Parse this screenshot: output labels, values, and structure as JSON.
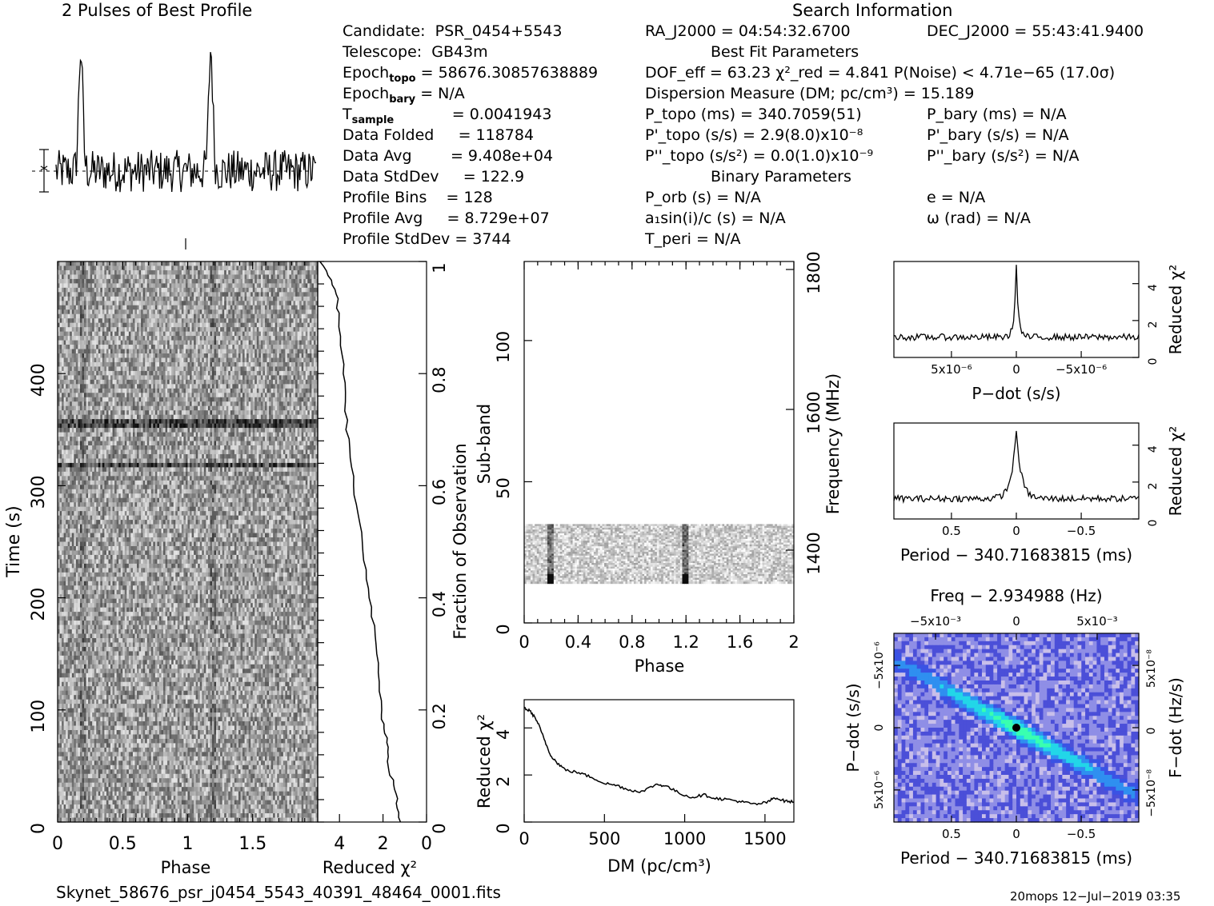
{
  "profile_title": "2 Pulses of Best Profile",
  "search_title": "Search Information",
  "info_left": [
    {
      "label": "Candidate:",
      "value": "PSR_0454+5543"
    },
    {
      "label": "Telescope:",
      "value": "GB43m"
    },
    {
      "label": "Epoch_topo",
      "value": "= 58676.30857638889"
    },
    {
      "label": "Epoch_bary",
      "value": "= N/A"
    },
    {
      "label": "T_sample",
      "value": "=   0.0041943"
    },
    {
      "label": "Data Folded",
      "value": "=   118784"
    },
    {
      "label": "Data Avg",
      "value": "=   9.408e+04"
    },
    {
      "label": "Data StdDev",
      "value": "=   122.9"
    },
    {
      "label": "Profile Bins",
      "value": "=   128"
    },
    {
      "label": "Profile Avg",
      "value": "=   8.729e+07"
    },
    {
      "label": "Profile StdDev",
      "value": "=   3744"
    }
  ],
  "info_mid": {
    "ra": "RA_J2000 = 04:54:32.6700",
    "best_fit_header": "Best Fit Parameters",
    "dof": "DOF_eff = 63.23  χ²_red = 4.841  P(Noise) < 4.71e−65  (17.0σ)",
    "dm": "Dispersion Measure (DM; pc/cm³) = 15.189",
    "p_topo": "P_topo (ms) =  340.7059(51)",
    "pd_topo": "P'_topo (s/s) =  2.9(8.0)x10⁻⁸",
    "pdd_topo": "P''_topo (s/s²) = 0.0(1.0)x10⁻⁹",
    "binary_header": "Binary Parameters",
    "p_orb": "P_orb (s) = N/A",
    "a1": "a₁sin(i)/c (s) = N/A",
    "t_peri": "T_peri = N/A"
  },
  "info_right": {
    "dec": "DEC_J2000 = 55:43:41.9400",
    "p_bary": "P_bary (ms) = N/A",
    "pd_bary": "P'_bary (s/s) = N/A",
    "pdd_bary": "P''_bary (s/s²) = N/A",
    "e": "e = N/A",
    "omega": "ω (rad) = N/A"
  },
  "footer_file": "Skynet_58676_psr_j0454_5543_40391_48464_0001.fits",
  "footer_stamp": "20mops 12−Jul−2019 03:35",
  "colors": {
    "ink": "#000000",
    "bg": "#ffffff",
    "heat_low": "#3a3ad8",
    "heat_mid": "#2fe0d0",
    "heat_peak": "#000000"
  },
  "chart_data": [
    {
      "id": "profile",
      "type": "line",
      "title": "2 Pulses of Best Profile",
      "x_phase_range": [
        0,
        2
      ],
      "pulse_peaks_phase": [
        0.19,
        1.19
      ],
      "note_values": "normalized amplitude, peak = 1.0, baseline ≈ 0.2"
    },
    {
      "id": "time_phase",
      "type": "heatmap",
      "xlabel": "Phase",
      "ylabel": "Time (s)",
      "x_ticks": [
        0,
        0.5,
        1,
        1.5
      ],
      "x_tick_labels": [
        "0",
        "0.5",
        "1",
        "1.5"
      ],
      "xlim": [
        0,
        2
      ],
      "ylim": [
        0,
        500
      ],
      "y_ticks": [
        0,
        100,
        200,
        300,
        400
      ],
      "right_axis": {
        "label": "Fraction of Observation",
        "ticks": [
          "0",
          "0.2",
          "0.4",
          "0.6",
          "0.8",
          "1"
        ]
      }
    },
    {
      "id": "chi_time",
      "type": "line",
      "xlabel": "Reduced χ²",
      "x_ticks": [
        "4",
        "2",
        "0"
      ],
      "xlim": [
        5,
        0
      ],
      "curve": [
        [
          0.0,
          1.25
        ],
        [
          0.05,
          1.4
        ],
        [
          0.1,
          1.75
        ],
        [
          0.15,
          1.85
        ],
        [
          0.2,
          2.1
        ],
        [
          0.3,
          2.25
        ],
        [
          0.4,
          2.6
        ],
        [
          0.5,
          2.95
        ],
        [
          0.6,
          3.35
        ],
        [
          0.7,
          3.65
        ],
        [
          0.8,
          3.8
        ],
        [
          0.9,
          4.05
        ],
        [
          0.95,
          4.15
        ],
        [
          1.0,
          4.9
        ]
      ]
    },
    {
      "id": "subband_phase",
      "type": "heatmap",
      "xlabel": "Phase",
      "ylabel": "Sub-band",
      "x_ticks": [
        "0",
        "0.4",
        "0.8",
        "1.2",
        "1.6",
        "2"
      ],
      "y_ticks": [
        "0",
        "50",
        "100"
      ],
      "ylim": [
        0,
        128
      ],
      "data_band": [
        14,
        35
      ],
      "right_axis": {
        "label": "Frequency (MHz)",
        "ticks": [
          "1400",
          "1600",
          "1800"
        ]
      }
    },
    {
      "id": "dm_curve",
      "type": "line",
      "xlabel": "DM (pc/cm³)",
      "ylabel": "Reduced χ²",
      "x_ticks": [
        "0",
        "500",
        "1000",
        "1500"
      ],
      "y_ticks": [
        "0",
        "2",
        "4"
      ],
      "xlim": [
        0,
        1680
      ],
      "ylim": [
        0,
        5.2
      ],
      "points": [
        [
          0,
          4.85
        ],
        [
          40,
          4.7
        ],
        [
          80,
          4.3
        ],
        [
          120,
          3.6
        ],
        [
          160,
          2.9
        ],
        [
          200,
          2.55
        ],
        [
          260,
          2.2
        ],
        [
          340,
          2.1
        ],
        [
          420,
          1.9
        ],
        [
          500,
          1.65
        ],
        [
          580,
          1.55
        ],
        [
          660,
          1.35
        ],
        [
          740,
          1.3
        ],
        [
          820,
          1.6
        ],
        [
          880,
          1.55
        ],
        [
          960,
          1.25
        ],
        [
          1040,
          1.05
        ],
        [
          1120,
          1.15
        ],
        [
          1200,
          1.0
        ],
        [
          1280,
          0.95
        ],
        [
          1360,
          0.85
        ],
        [
          1440,
          0.75
        ],
        [
          1520,
          0.85
        ],
        [
          1560,
          1.05
        ],
        [
          1620,
          0.9
        ],
        [
          1680,
          0.85
        ]
      ]
    },
    {
      "id": "pdot_curve",
      "type": "line",
      "xlabel": "P−dot (s/s)",
      "ylabel": "Reduced χ²",
      "x_ticks": [
        "5x10⁻⁶",
        "0",
        "−5x10⁻⁶"
      ],
      "y_ticks": [
        "0",
        "2",
        "4"
      ],
      "ylim": [
        0,
        5.2
      ],
      "baseline": 1.1,
      "peak": 4.9,
      "peak_position": 0.5
    },
    {
      "id": "period_curve",
      "type": "line",
      "xlabel": "Period − 340.71683815 (ms)",
      "ylabel": "Reduced χ²",
      "x_ticks": [
        "0.5",
        "0",
        "−0.5"
      ],
      "y_ticks": [
        "0",
        "2",
        "4"
      ],
      "ylim": [
        0,
        5.2
      ],
      "baseline": 1.1,
      "peak": 4.8,
      "peak_position": 0.5
    },
    {
      "id": "p_pdot_plane",
      "type": "heatmap",
      "title": "Freq − 2.934988 (Hz)",
      "xlabel": "Period − 340.71683815 (ms)",
      "ylabel": "P−dot (s/s)",
      "top_ticks": [
        "−5x10⁻³",
        "0",
        "5x10⁻³"
      ],
      "x_ticks": [
        "0.5",
        "0",
        "−0.5"
      ],
      "y_ticks": [
        "−5x10⁻⁶",
        "0",
        "5x10⁻⁶"
      ],
      "right_axis": {
        "label": "F−dot (Hz/s)",
        "ticks": [
          "5x10⁻⁸",
          "0",
          "−5x10⁻⁸"
        ]
      }
    }
  ]
}
